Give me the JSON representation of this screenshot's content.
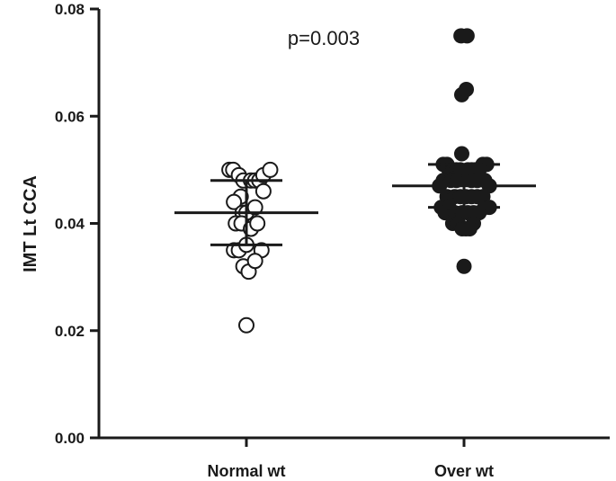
{
  "chart_data": {
    "type": "scatter",
    "subtype": "dot-plot",
    "title": "",
    "xlabel": "",
    "ylabel": "IMT Lt CCA",
    "ylim": [
      0.0,
      0.08
    ],
    "yticks": [
      0.0,
      0.02,
      0.04,
      0.06,
      0.08
    ],
    "ytick_labels": [
      "0.00",
      "0.02",
      "0.04",
      "0.06",
      "0.08"
    ],
    "categories": [
      "Normal wt",
      "Over wt"
    ],
    "annotation": "p=0.003",
    "grid": false,
    "legend": "none",
    "series": [
      {
        "category": "Normal wt",
        "marker": "open-circle",
        "color": "#1a1a1a",
        "mean": 0.042,
        "sd": 0.006,
        "points": [
          {
            "x": -0.45,
            "y": 0.05
          },
          {
            "x": -0.35,
            "y": 0.05
          },
          {
            "x": -0.2,
            "y": 0.049
          },
          {
            "x": -0.08,
            "y": 0.048
          },
          {
            "x": 0.12,
            "y": 0.048
          },
          {
            "x": 0.23,
            "y": 0.048
          },
          {
            "x": 0.34,
            "y": 0.048
          },
          {
            "x": 0.45,
            "y": 0.049
          },
          {
            "x": 0.63,
            "y": 0.05
          },
          {
            "x": 0.45,
            "y": 0.046
          },
          {
            "x": -0.15,
            "y": 0.045
          },
          {
            "x": -0.33,
            "y": 0.044
          },
          {
            "x": -0.1,
            "y": 0.042
          },
          {
            "x": 0.0,
            "y": 0.042
          },
          {
            "x": 0.23,
            "y": 0.043
          },
          {
            "x": -0.28,
            "y": 0.04
          },
          {
            "x": -0.13,
            "y": 0.04
          },
          {
            "x": 0.12,
            "y": 0.039
          },
          {
            "x": 0.29,
            "y": 0.04
          },
          {
            "x": -0.33,
            "y": 0.035
          },
          {
            "x": -0.2,
            "y": 0.035
          },
          {
            "x": 0.0,
            "y": 0.036
          },
          {
            "x": 0.4,
            "y": 0.035
          },
          {
            "x": -0.08,
            "y": 0.032
          },
          {
            "x": 0.06,
            "y": 0.031
          },
          {
            "x": 0.23,
            "y": 0.033
          },
          {
            "x": 0.0,
            "y": 0.021
          }
        ]
      },
      {
        "category": "Over wt",
        "marker": "filled-circle",
        "color": "#1a1a1a",
        "mean": 0.047,
        "sd": 0.004,
        "points": [
          {
            "x": -0.08,
            "y": 0.075
          },
          {
            "x": 0.08,
            "y": 0.075
          },
          {
            "x": -0.06,
            "y": 0.064
          },
          {
            "x": 0.06,
            "y": 0.065
          },
          {
            "x": -0.06,
            "y": 0.053
          },
          {
            "x": -0.55,
            "y": 0.051
          },
          {
            "x": -0.45,
            "y": 0.051
          },
          {
            "x": 0.5,
            "y": 0.051
          },
          {
            "x": 0.6,
            "y": 0.051
          },
          {
            "x": -0.4,
            "y": 0.05
          },
          {
            "x": -0.3,
            "y": 0.05
          },
          {
            "x": -0.2,
            "y": 0.05
          },
          {
            "x": -0.1,
            "y": 0.05
          },
          {
            "x": 0.1,
            "y": 0.05
          },
          {
            "x": 0.2,
            "y": 0.05
          },
          {
            "x": 0.3,
            "y": 0.05
          },
          {
            "x": 0.4,
            "y": 0.05
          },
          {
            "x": -0.55,
            "y": 0.048
          },
          {
            "x": -0.35,
            "y": 0.048
          },
          {
            "x": -0.2,
            "y": 0.048
          },
          {
            "x": 0.2,
            "y": 0.048
          },
          {
            "x": 0.35,
            "y": 0.048
          },
          {
            "x": 0.55,
            "y": 0.048
          },
          {
            "x": -0.65,
            "y": 0.047
          },
          {
            "x": 0.67,
            "y": 0.047
          },
          {
            "x": -0.45,
            "y": 0.045
          },
          {
            "x": -0.25,
            "y": 0.045
          },
          {
            "x": -0.1,
            "y": 0.045
          },
          {
            "x": 0.05,
            "y": 0.045
          },
          {
            "x": 0.2,
            "y": 0.045
          },
          {
            "x": 0.35,
            "y": 0.045
          },
          {
            "x": 0.5,
            "y": 0.045
          },
          {
            "x": -0.6,
            "y": 0.043
          },
          {
            "x": -0.4,
            "y": 0.043
          },
          {
            "x": 0.55,
            "y": 0.043
          },
          {
            "x": 0.67,
            "y": 0.043
          },
          {
            "x": -0.5,
            "y": 0.042
          },
          {
            "x": -0.25,
            "y": 0.042
          },
          {
            "x": -0.05,
            "y": 0.042
          },
          {
            "x": 0.1,
            "y": 0.042
          },
          {
            "x": 0.25,
            "y": 0.042
          },
          {
            "x": 0.4,
            "y": 0.042
          },
          {
            "x": -0.3,
            "y": 0.04
          },
          {
            "x": -0.15,
            "y": 0.04
          },
          {
            "x": 0.25,
            "y": 0.04
          },
          {
            "x": -0.05,
            "y": 0.039
          },
          {
            "x": 0.05,
            "y": 0.039
          },
          {
            "x": 0.15,
            "y": 0.039
          },
          {
            "x": 0.0,
            "y": 0.032
          }
        ]
      }
    ]
  }
}
